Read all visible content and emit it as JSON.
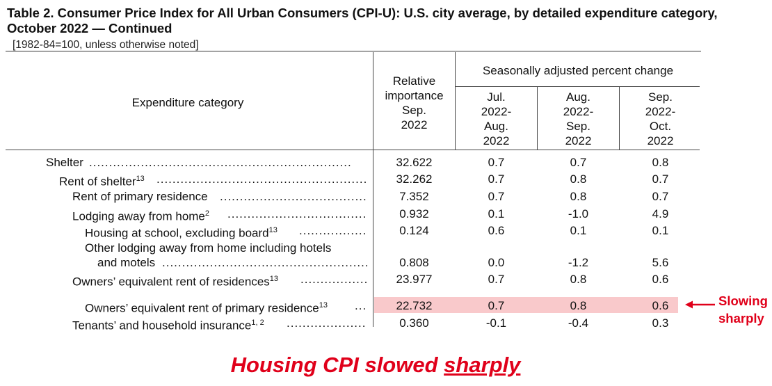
{
  "title": "Table 2. Consumer Price Index for All Urban Consumers (CPI-U): U.S. city average, by detailed expenditure category, October 2022 — Continued",
  "subtitle": "[1982-84=100, unless otherwise noted]",
  "headers": {
    "category": "Expenditure category",
    "relative_importance": [
      "Relative",
      "importance",
      "Sep.",
      "2022"
    ],
    "seasonally_adjusted": "Seasonally adjusted percent change",
    "periods": [
      [
        "Jul.",
        "2022-",
        "Aug.",
        "2022"
      ],
      [
        "Aug.",
        "2022-",
        "Sep.",
        "2022"
      ],
      [
        "Sep.",
        "2022-",
        "Oct.",
        "2022"
      ]
    ]
  },
  "rows": [
    {
      "label": "Shelter",
      "sup": "",
      "relative": "32.622",
      "jul_aug": "0.7",
      "aug_sep": "0.7",
      "sep_oct": "0.8"
    },
    {
      "label": "Rent of shelter",
      "sup": "13",
      "relative": "32.262",
      "jul_aug": "0.7",
      "aug_sep": "0.8",
      "sep_oct": "0.7"
    },
    {
      "label": "Rent of primary residence",
      "sup": "",
      "relative": "7.352",
      "jul_aug": "0.7",
      "aug_sep": "0.8",
      "sep_oct": "0.7"
    },
    {
      "label": "Lodging away from home",
      "sup": "2",
      "relative": "0.932",
      "jul_aug": "0.1",
      "aug_sep": "-1.0",
      "sep_oct": "4.9"
    },
    {
      "label": "Housing at school, excluding board",
      "sup": "13",
      "relative": "0.124",
      "jul_aug": "0.6",
      "aug_sep": "0.1",
      "sep_oct": "0.1"
    },
    {
      "label_line1": "Other lodging away from home including hotels",
      "label": "and motels",
      "sup": "",
      "relative": "0.808",
      "jul_aug": "0.0",
      "aug_sep": "-1.2",
      "sep_oct": "5.6"
    },
    {
      "label": "Owners’ equivalent rent of residences",
      "sup": "13",
      "relative": "23.977",
      "jul_aug": "0.7",
      "aug_sep": "0.8",
      "sep_oct": "0.6"
    },
    {
      "label": "Owners’ equivalent rent of primary residence",
      "sup": "13",
      "relative": "22.732",
      "jul_aug": "0.7",
      "aug_sep": "0.8",
      "sep_oct": "0.6"
    },
    {
      "label": "Tenants’ and household insurance",
      "sup": "1, 2",
      "relative": "0.360",
      "jul_aug": "-0.1",
      "aug_sep": "-0.4",
      "sep_oct": "0.3"
    }
  ],
  "annotation": {
    "note_line1": "Slowing",
    "note_line2": "sharply",
    "footer_main": "Housing CPI slowed ",
    "footer_emphasis": "sharply",
    "color": "#e0001a",
    "highlight_color": "#f9c9cb"
  }
}
